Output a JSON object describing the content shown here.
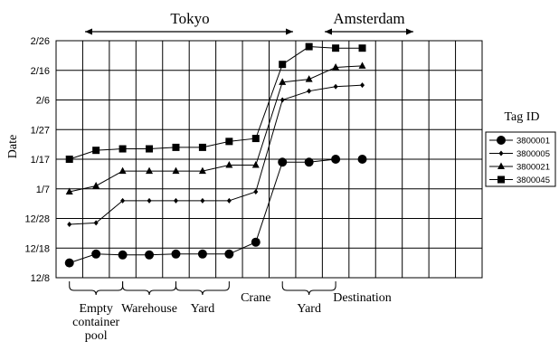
{
  "chart_data": {
    "type": "line",
    "title": "",
    "ylabel": "Date",
    "xlabel": "",
    "y_axis_year_start": "",
    "y_ticks": [
      "12/8",
      "12/18",
      "12/28",
      "1/7",
      "1/17",
      "1/27",
      "2/6",
      "2/16",
      "2/26"
    ],
    "x_slots": 16,
    "location_labels": [
      "Tokyo",
      "Amsterdam"
    ],
    "stage_labels": [
      {
        "text": "Empty container pool",
        "lines": [
          "Empty",
          "container",
          "pool"
        ],
        "slot_start": 0,
        "slot_end": 2
      },
      {
        "text": "Warehouse",
        "lines": [
          "Warehouse"
        ],
        "slot_start": 2,
        "slot_end": 4
      },
      {
        "text": "Yard",
        "lines": [
          "Yard"
        ],
        "slot_start": 4,
        "slot_end": 6
      },
      {
        "text": "Crane",
        "lines": [
          "Crane"
        ],
        "slot_start": 7,
        "slot_end": 7
      },
      {
        "text": "Yard",
        "lines": [
          "Yard"
        ],
        "slot_start": 8,
        "slot_end": 10
      },
      {
        "text": "Destination",
        "lines": [
          "Destination"
        ],
        "slot_start": 11,
        "slot_end": 11
      }
    ],
    "legend_title": "Tag ID",
    "legend_position": "right",
    "grid": true,
    "series": [
      {
        "name": "3800001",
        "marker": "circle",
        "points": [
          [
            0,
            "12/13"
          ],
          [
            1,
            "12/16"
          ],
          [
            2,
            "12/15.7"
          ],
          [
            3,
            "12/15.7"
          ],
          [
            4,
            "12/16"
          ],
          [
            5,
            "12/16"
          ],
          [
            6,
            "12/16"
          ],
          [
            7,
            "12/20"
          ],
          [
            8,
            "1/16"
          ],
          [
            9,
            "1/16"
          ],
          [
            10,
            "1/17"
          ],
          [
            11,
            "1/17"
          ]
        ]
      },
      {
        "name": "3800005",
        "marker": "diamond",
        "points": [
          [
            0,
            "12/26"
          ],
          [
            1,
            "12/26.5"
          ],
          [
            2,
            "1/3"
          ],
          [
            3,
            "1/3"
          ],
          [
            4,
            "1/3"
          ],
          [
            5,
            "1/3"
          ],
          [
            6,
            "1/3"
          ],
          [
            7,
            "1/6"
          ],
          [
            8,
            "2/6"
          ],
          [
            9,
            "2/9"
          ],
          [
            10,
            "2/10.5"
          ],
          [
            11,
            "2/11"
          ]
        ]
      },
      {
        "name": "3800021",
        "marker": "triangle",
        "points": [
          [
            0,
            "1/6"
          ],
          [
            1,
            "1/8"
          ],
          [
            2,
            "1/13"
          ],
          [
            3,
            "1/13"
          ],
          [
            4,
            "1/13"
          ],
          [
            5,
            "1/13"
          ],
          [
            6,
            "1/15"
          ],
          [
            7,
            "1/15"
          ],
          [
            8,
            "2/12"
          ],
          [
            9,
            "2/13"
          ],
          [
            10,
            "2/17"
          ],
          [
            11,
            "2/17.5"
          ]
        ]
      },
      {
        "name": "3800045",
        "marker": "square",
        "points": [
          [
            0,
            "1/17"
          ],
          [
            1,
            "1/20"
          ],
          [
            2,
            "1/20.5"
          ],
          [
            3,
            "1/20.5"
          ],
          [
            4,
            "1/21"
          ],
          [
            5,
            "1/21"
          ],
          [
            6,
            "1/23"
          ],
          [
            7,
            "1/24"
          ],
          [
            8,
            "2/18"
          ],
          [
            9,
            "2/24"
          ],
          [
            10,
            "2/23.5"
          ],
          [
            11,
            "2/23.5"
          ]
        ]
      }
    ]
  }
}
